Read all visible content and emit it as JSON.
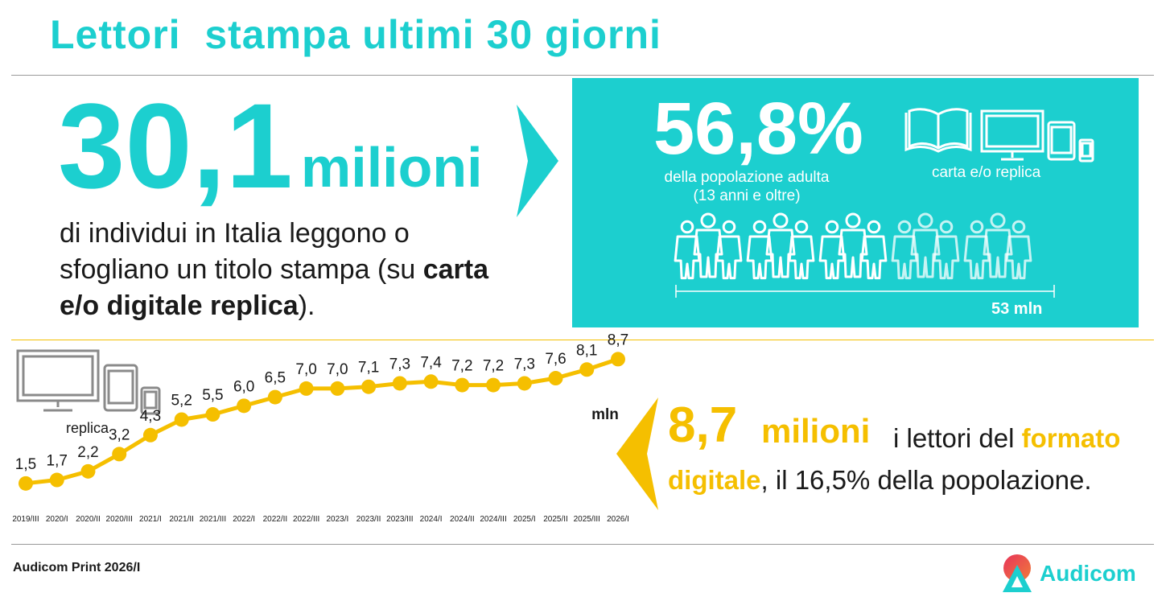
{
  "title": "Lettori  stampa ultimi 30 giorni",
  "headline": {
    "number": "30,1",
    "unit": "milioni",
    "desc_plain": "di individui in Italia leggono o sfogliano un titolo stampa (su ",
    "desc_bold": "carta e/o digitale replica",
    "desc_end": ")."
  },
  "teal_panel": {
    "percent": "56,8%",
    "population_line1": "della popolazione adulta",
    "population_line2": "(13 anni e oltre)",
    "devices_label": "carta e/o replica",
    "total_label": "53 mln",
    "people_filled_fraction": 0.568
  },
  "digital": {
    "devices_label": "replica",
    "unit_label": "mln",
    "number": "8,7",
    "unit": "milioni",
    "text_part1": "i lettori del ",
    "text_highlight1": "formato",
    "text_highlight2": "digitale",
    "text_part2": ", il 16,5% della popolazione."
  },
  "chart_data": {
    "type": "line",
    "categories": [
      "2019/III",
      "2020/I",
      "2020/II",
      "2020/III",
      "2021/I",
      "2021/II",
      "2021/III",
      "2022/I",
      "2022/II",
      "2022/III",
      "2023/I",
      "2023/II",
      "2023/III",
      "2024/I",
      "2024/II",
      "2024/III",
      "2025/I",
      "2025/II",
      "2025/III",
      "2026/I"
    ],
    "values": [
      1.5,
      1.7,
      2.2,
      3.2,
      4.3,
      5.2,
      5.5,
      6.0,
      6.5,
      7.0,
      7.0,
      7.1,
      7.3,
      7.4,
      7.2,
      7.2,
      7.3,
      7.6,
      8.1,
      8.7
    ],
    "value_labels": [
      "1,5",
      "1,7",
      "2,2",
      "3,2",
      "4,3",
      "5,2",
      "5,5",
      "6,0",
      "6,5",
      "7,0",
      "7,0",
      "7,1",
      "7,3",
      "7,4",
      "7,2",
      "7,2",
      "7,3",
      "7,6",
      "8,1",
      "8,7"
    ],
    "ylim": [
      0,
      9
    ],
    "grid": false,
    "color": "#f5bf00"
  },
  "footer": {
    "source": "Audicom Print 2026/I",
    "logo_text": "Audicom"
  },
  "colors": {
    "teal": "#1ccfcf",
    "yellow": "#f5bf00",
    "text": "#1a1a1a",
    "rule_gray": "#9a9a9a",
    "rule_yellow": "#f5bf00"
  }
}
